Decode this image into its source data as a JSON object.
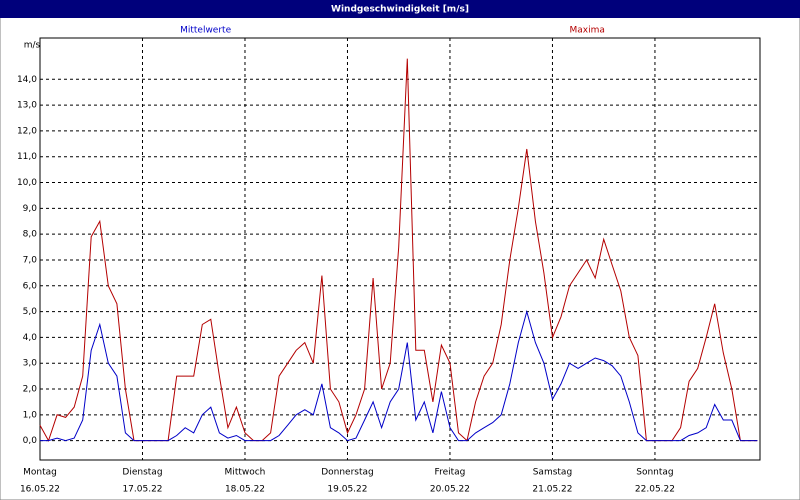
{
  "chart_data": {
    "type": "line",
    "title": "Windgeschwindigkeit [m/s]",
    "y_label": "m/s",
    "x": [
      0,
      2,
      4,
      6,
      8,
      10,
      12,
      14,
      16,
      18,
      20,
      22,
      24,
      26,
      28,
      30,
      32,
      34,
      36,
      38,
      40,
      42,
      44,
      46,
      48,
      50,
      52,
      54,
      56,
      58,
      60,
      62,
      64,
      66,
      68,
      70,
      72,
      74,
      76,
      78,
      80,
      82,
      84,
      86,
      88,
      90,
      92,
      94,
      96,
      98,
      100,
      102,
      104,
      106,
      108,
      110,
      112,
      114,
      116,
      118,
      120,
      122,
      124,
      126,
      128,
      130,
      132,
      134,
      136,
      138,
      140,
      142,
      144,
      146,
      148,
      150,
      152,
      154,
      156,
      158,
      160,
      162,
      164,
      166,
      168
    ],
    "series": [
      {
        "name": "Mittelwerte",
        "color": "#0000c8",
        "values": [
          0,
          0,
          0.1,
          0,
          0.1,
          0.8,
          3.5,
          4.5,
          3.0,
          2.5,
          0.3,
          0,
          0,
          0,
          0,
          0,
          0.2,
          0.5,
          0.3,
          1.0,
          1.3,
          0.3,
          0.1,
          0.2,
          0,
          0,
          0,
          0,
          0.2,
          0.6,
          1.0,
          1.2,
          1.0,
          2.2,
          0.5,
          0.3,
          0,
          0.1,
          0.8,
          1.5,
          0.5,
          1.5,
          2.0,
          3.8,
          0.8,
          1.5,
          0.3,
          1.9,
          0.5,
          0,
          0,
          0.3,
          0.5,
          0.7,
          1.0,
          2.2,
          3.8,
          5.0,
          3.8,
          3.0,
          1.6,
          2.2,
          3.0,
          2.8,
          3.0,
          3.2,
          3.1,
          2.9,
          2.5,
          1.5,
          0.3,
          0,
          0,
          0,
          0,
          0,
          0.2,
          0.3,
          0.5,
          1.4,
          0.8,
          0.8,
          0,
          0,
          0
        ]
      },
      {
        "name": "Maxima",
        "color": "#b40000",
        "values": [
          0.6,
          0,
          1.0,
          0.9,
          1.3,
          2.5,
          7.9,
          8.5,
          6.0,
          5.3,
          2.0,
          0,
          0,
          0,
          0,
          0,
          2.5,
          2.5,
          2.5,
          4.5,
          4.7,
          2.5,
          0.5,
          1.3,
          0.3,
          0,
          0,
          0.3,
          2.5,
          3.0,
          3.5,
          3.8,
          3.0,
          6.4,
          2.0,
          1.5,
          0.3,
          1.0,
          2.0,
          6.3,
          2.0,
          3.0,
          7.5,
          14.8,
          3.5,
          3.5,
          1.5,
          3.7,
          3.0,
          0.3,
          0,
          1.5,
          2.5,
          3.0,
          4.5,
          7.0,
          9.0,
          11.3,
          8.5,
          6.5,
          4.0,
          4.8,
          6.0,
          6.5,
          7.0,
          6.3,
          7.8,
          6.8,
          5.8,
          4.0,
          3.3,
          0,
          0,
          0,
          0,
          0.5,
          2.3,
          2.8,
          4.0,
          5.3,
          3.4,
          2.0,
          0,
          0,
          0
        ]
      }
    ],
    "xlim": [
      0,
      168.6
    ],
    "xticks": [
      {
        "value": 0,
        "label": "Montag",
        "date": "16.05.22"
      },
      {
        "value": 24,
        "label": "Dienstag",
        "date": "17.05.22"
      },
      {
        "value": 48,
        "label": "Mittwoch",
        "date": "18.05.22"
      },
      {
        "value": 72,
        "label": "Donnerstag",
        "date": "19.05.22"
      },
      {
        "value": 96,
        "label": "Freitag",
        "date": "20.05.22"
      },
      {
        "value": 120,
        "label": "Samstag",
        "date": "21.05.22"
      },
      {
        "value": 144,
        "label": "Sonntag",
        "date": "22.05.22"
      }
    ],
    "ylim": [
      -0.75,
      15.6
    ],
    "yticks": [
      {
        "value": 0,
        "label": "0,0"
      },
      {
        "value": 1,
        "label": "1,0"
      },
      {
        "value": 2,
        "label": "2,0"
      },
      {
        "value": 3,
        "label": "3,0"
      },
      {
        "value": 4,
        "label": "4,0"
      },
      {
        "value": 5,
        "label": "5,0"
      },
      {
        "value": 6,
        "label": "6,0"
      },
      {
        "value": 7,
        "label": "7,0"
      },
      {
        "value": 8,
        "label": "8,0"
      },
      {
        "value": 9,
        "label": "9,0"
      },
      {
        "value": 10,
        "label": "10,0"
      },
      {
        "value": 11,
        "label": "11,0"
      },
      {
        "value": 12,
        "label": "12,0"
      },
      {
        "value": 13,
        "label": "13,0"
      },
      {
        "value": 14,
        "label": "14,0"
      }
    ],
    "grid": true
  }
}
